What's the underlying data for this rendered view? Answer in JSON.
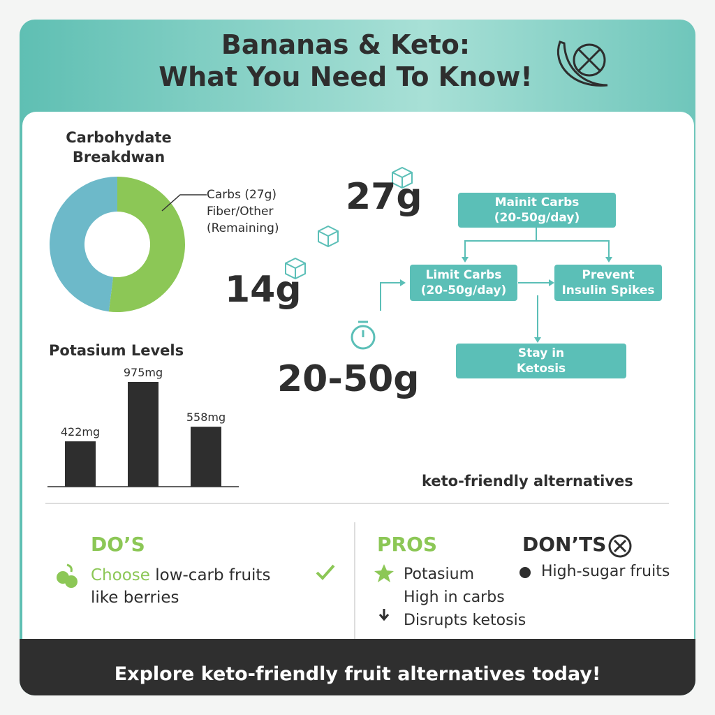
{
  "header": {
    "title": "Bananas & Keto:\nWhat You Need To Know!"
  },
  "chart_data": [
    {
      "type": "pie",
      "title": "Carbohydate Breakdwan",
      "categories": [
        "Carbs (27g)",
        "Fiber/Other\n(Remaining)"
      ],
      "values": [
        52,
        48
      ],
      "colors": [
        "#8cc756",
        "#6db9c9"
      ],
      "donut": true
    },
    {
      "type": "bar",
      "title": "Potasium Levels",
      "categories": [
        null,
        null,
        null
      ],
      "values": [
        422,
        975,
        558
      ],
      "value_labels": [
        "422mg",
        "975mg",
        "558mg"
      ],
      "color": "#2e2e2e"
    }
  ],
  "big_numbers": [
    "27g",
    "14g",
    "20-50g"
  ],
  "flow": {
    "nodes": [
      "Mainit Carbs\n(20-50g/day)",
      "Limit Carbs\n(20-50g/day)",
      "Prevent\nInsulin Spikes",
      "Stay in\nKetosis"
    ]
  },
  "alternatives_caption": "keto-friendly alternatives",
  "dos": {
    "heading": "DO’S",
    "highlight": "Choose",
    "text": "low-carb fruits\nlike berries"
  },
  "pros": {
    "heading": "PROS",
    "items": [
      "Potasium",
      "High in carbs",
      "Disrupts ketosis"
    ]
  },
  "donts": {
    "heading": "DON’TS",
    "items": [
      "High-sugar fruits"
    ]
  },
  "footer": "Explore keto-friendly fruit alternatives today!"
}
